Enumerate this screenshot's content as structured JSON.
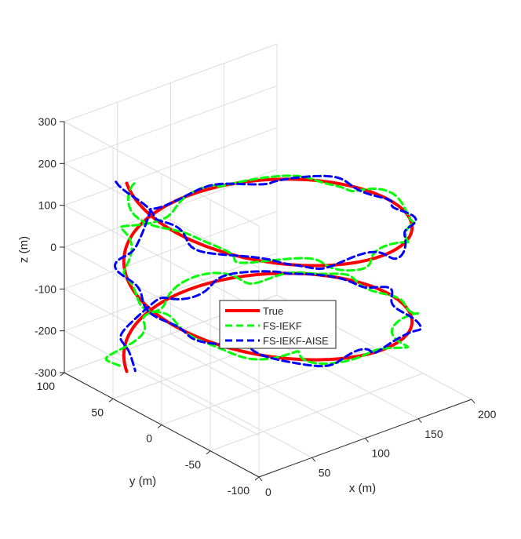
{
  "chart_data": {
    "type": "line",
    "projection": "3d",
    "title": "",
    "xlabel": "x (m)",
    "ylabel": "y (m)",
    "zlabel": "z (m)",
    "xlim": [
      0,
      200
    ],
    "ylim": [
      -100,
      100
    ],
    "zlim": [
      -300,
      300
    ],
    "x_ticks": [
      "0",
      "50",
      "100",
      "150",
      "200"
    ],
    "y_ticks": [
      "-100",
      "-50",
      "0",
      "50",
      "100"
    ],
    "z_ticks": [
      "-300",
      "-200",
      "-100",
      "0",
      "100",
      "200",
      "300"
    ],
    "grid": true,
    "legend_position": "center",
    "trajectory_model": {
      "description": "helix around vertical axis",
      "x_center": 100,
      "y_center": 0,
      "radius": 100,
      "z_start": 200,
      "z_end": -250,
      "turns": 2
    },
    "series": [
      {
        "name": "True",
        "color": "#ff0000",
        "style": "solid"
      },
      {
        "name": "FS-IEKF",
        "color": "#00ff00",
        "style": "dashed"
      },
      {
        "name": "FS-IEKF-AISE",
        "color": "#0000ff",
        "style": "dashed"
      }
    ]
  }
}
